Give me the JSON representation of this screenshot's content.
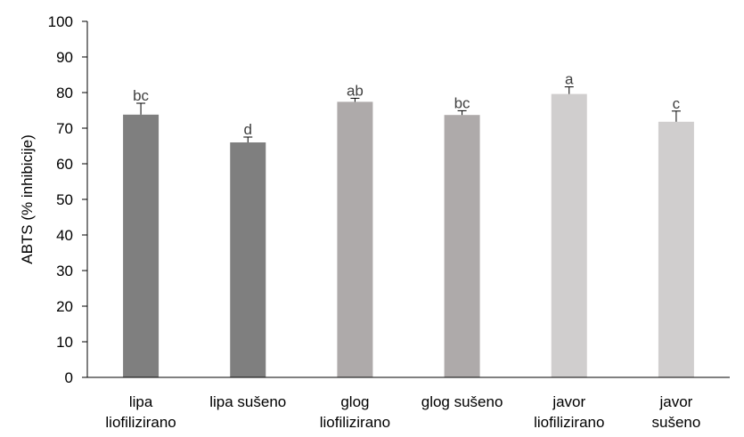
{
  "chart_data": {
    "type": "bar",
    "title": "",
    "xlabel": "",
    "ylabel": "ABTS (% inhibicije)",
    "ylim": [
      0,
      100
    ],
    "yticks": [
      0,
      10,
      20,
      30,
      40,
      50,
      60,
      70,
      80,
      90,
      100
    ],
    "categories": [
      [
        "lipa",
        "liofilizirano"
      ],
      [
        "lipa sušeno"
      ],
      [
        "glog",
        "liofilizirano"
      ],
      [
        "glog sušeno"
      ],
      [
        "javor",
        "liofilizirano"
      ],
      [
        "javor",
        "sušeno"
      ]
    ],
    "values": [
      73.8,
      66.0,
      77.4,
      73.7,
      79.6,
      71.8
    ],
    "errors": [
      3.2,
      1.5,
      1.0,
      1.2,
      2.0,
      3.0
    ],
    "significance_labels": [
      "bc",
      "d",
      "ab",
      "bc",
      "a",
      "c"
    ],
    "colors": [
      "#7f7f7f",
      "#7f7f7f",
      "#aeaaaa",
      "#aeaaaa",
      "#d0cece",
      "#d0cece"
    ],
    "grid": false,
    "legend": "none"
  }
}
